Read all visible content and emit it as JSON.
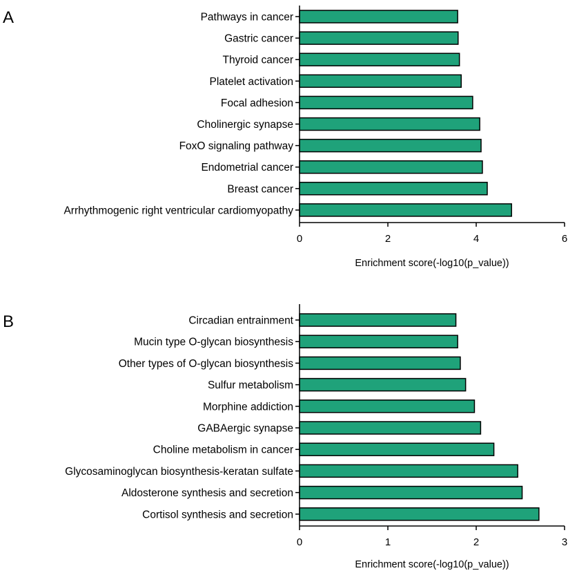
{
  "colors": {
    "bar_fill": "#1fa27a",
    "bar_stroke": "#000000",
    "axis": "#000000"
  },
  "chart_data": [
    {
      "type": "bar",
      "orientation": "horizontal",
      "panel": "A",
      "categories": [
        "Pathways in cancer",
        "Gastric cancer",
        "Thyroid cancer",
        "Platelet activation",
        "Focal adhesion",
        "Cholinergic synapse",
        "FoxO signaling pathway",
        "Endometrial cancer",
        "Breast cancer",
        "Arrhythmogenic right ventricular cardiomyopathy"
      ],
      "values": [
        3.58,
        3.59,
        3.62,
        3.66,
        3.92,
        4.08,
        4.11,
        4.14,
        4.25,
        4.8
      ],
      "xlabel": "Enrichment score(-log10(p_value))",
      "xlim": [
        0,
        6
      ],
      "xticks": [
        "0",
        "2",
        "4",
        "6"
      ]
    },
    {
      "type": "bar",
      "orientation": "horizontal",
      "panel": "B",
      "categories": [
        "Circadian entrainment",
        "Mucin type O-glycan biosynthesis",
        "Other types of O-glycan biosynthesis",
        "Sulfur metabolism",
        "Morphine addiction",
        "GABAergic synapse",
        "Choline metabolism in cancer",
        "Glycosaminoglycan biosynthesis-keratan sulfate",
        "Aldosterone synthesis and secretion",
        "Cortisol synthesis and secretion"
      ],
      "values": [
        1.77,
        1.79,
        1.82,
        1.88,
        1.98,
        2.05,
        2.2,
        2.47,
        2.52,
        2.71
      ],
      "xlabel": "Enrichment score(-log10(p_value))",
      "xlim": [
        0,
        3
      ],
      "xticks": [
        "0",
        "1",
        "2",
        "3"
      ]
    }
  ]
}
